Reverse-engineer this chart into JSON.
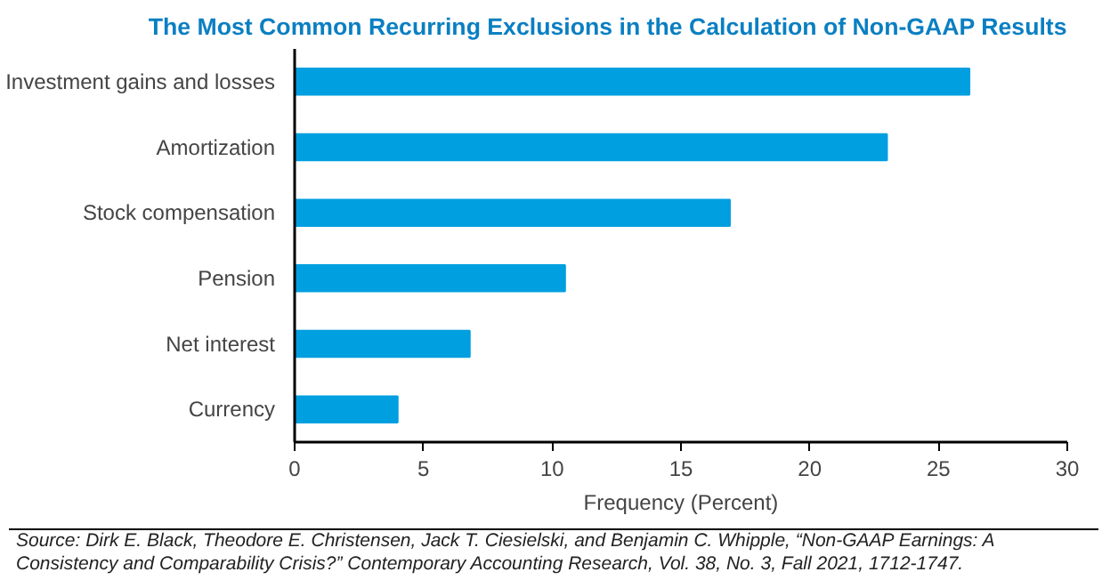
{
  "chart_data": {
    "type": "bar",
    "orientation": "horizontal",
    "title": "The Most Common Recurring Exclusions in the Calculation of Non-GAAP Results",
    "categories": [
      "Investment gains and losses",
      "Amortization",
      "Stock compensation",
      "Pension",
      "Net interest",
      "Currency"
    ],
    "values": [
      26.2,
      23.0,
      16.9,
      10.5,
      6.8,
      4.0
    ],
    "color": "#009fe0",
    "xlim": [
      0,
      30
    ],
    "xticks": [
      0,
      5,
      10,
      15,
      20,
      25,
      30
    ],
    "xlabel": "Frequency (Percent)",
    "grid": false,
    "annotations": [
      "Source: Dirk E. Black, Theodore E. Christensen, Jack T. Ciesielski, and Benjamin C. Whipple, “Non-GAAP Earnings: A Consistency and Comparability Crisis?” Contemporary Accounting Research, Vol. 38, No. 3, Fall 2021, 1712-1747."
    ]
  }
}
